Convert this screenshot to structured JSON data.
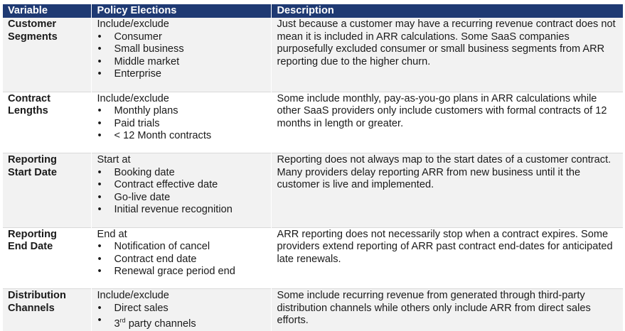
{
  "headers": {
    "variable": "Variable",
    "policy": "Policy Elections",
    "description": "Description"
  },
  "rows": [
    {
      "variable_line1": "Customer",
      "variable_line2": "Segments",
      "lead": "Include/exclude",
      "items": [
        "Consumer",
        "Small business",
        "Middle market",
        "Enterprise"
      ],
      "description": "Just because a customer may have a recurring revenue contract does not mean it is included in ARR calculations.  Some SaaS companies purposefully excluded consumer or small business segments from ARR reporting due to the higher churn."
    },
    {
      "variable_line1": "Contract",
      "variable_line2": "Lengths",
      "lead": "Include/exclude",
      "items": [
        "Monthly plans",
        "Paid trials",
        "< 12 Month contracts"
      ],
      "description": "Some include monthly, pay-as-you-go plans in ARR calculations while other SaaS providers only include customers with formal contracts of 12 months in length or greater."
    },
    {
      "variable_line1": "Reporting",
      "variable_line2": "Start Date",
      "lead": "Start at",
      "items": [
        "Booking date",
        "Contract effective date",
        "Go-live date",
        "Initial revenue recognition"
      ],
      "description": "Reporting does not always map to the start dates of a customer contract.  Many providers delay reporting ARR from new business until it the customer is live and implemented."
    },
    {
      "variable_line1": "Reporting",
      "variable_line2": "End Date",
      "lead": "End at",
      "items": [
        "Notification of cancel",
        "Contract end date",
        "Renewal grace period end"
      ],
      "description": "ARR reporting does not necessarily stop when a contract expires.  Some providers extend reporting of ARR past contract end-dates for anticipated late renewals."
    },
    {
      "variable_line1": "Distribution",
      "variable_line2": "Channels",
      "lead": "Include/exclude",
      "items": [
        "Direct sales",
        "3rd party channels"
      ],
      "description": "Some include recurring revenue from generated through third-party distribution channels while others only include ARR from direct sales efforts."
    }
  ],
  "colors": {
    "header_bg": "#1f3a73",
    "row_shade": "#f2f2f2"
  }
}
